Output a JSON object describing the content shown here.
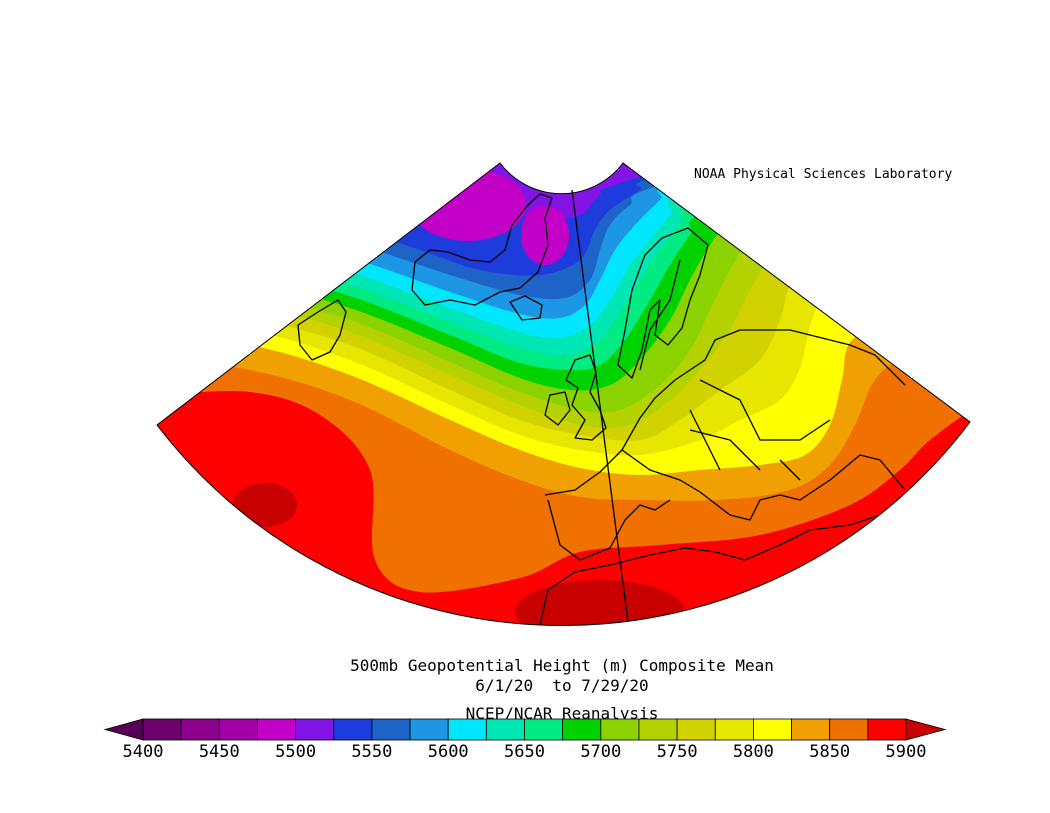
{
  "credit": "NOAA Physical Sciences Laboratory",
  "title": "500mb Geopotential Height (m) Composite Mean",
  "date_range": "6/1/20  to 7/29/20",
  "source": "NCEP/NCAR Reanalysis",
  "colorbar": {
    "xlim": [
      5400,
      5900
    ],
    "ticks": [
      5400,
      5450,
      5500,
      5550,
      5600,
      5650,
      5700,
      5750,
      5800,
      5850,
      5900
    ],
    "colors": [
      "#550055",
      "#6e006e",
      "#8c008c",
      "#a500a5",
      "#c300c8",
      "#8214e6",
      "#1e3cdc",
      "#1e64c8",
      "#1e96e6",
      "#00e6ff",
      "#00e6b4",
      "#00eb82",
      "#00d200",
      "#8cd200",
      "#b4d200",
      "#d2d200",
      "#e6e600",
      "#ffff00",
      "#f0a000",
      "#f07000",
      "#ff0000",
      "#c80000"
    ]
  }
}
